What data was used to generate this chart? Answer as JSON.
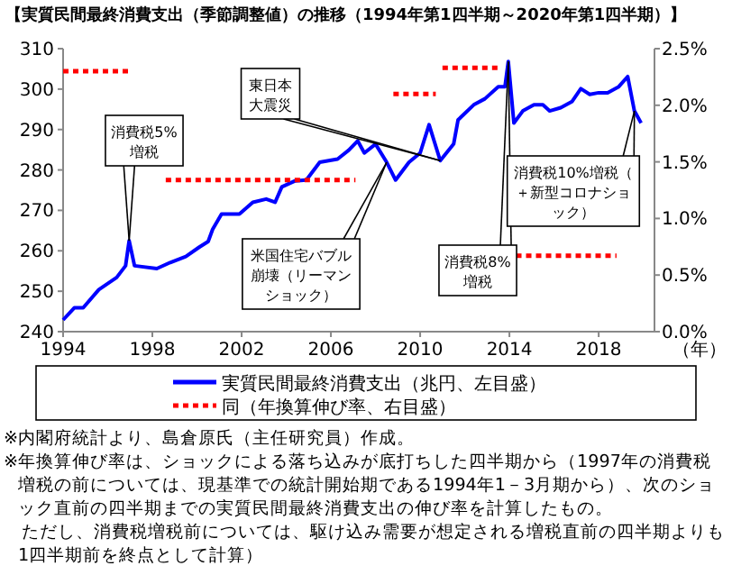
{
  "chart_data": {
    "type": "line",
    "title": "【実質民間最終消費支出（季節調整値）の推移（1994年第1四半期～2020年第1四半期）】",
    "xlabel": "（年）",
    "xlim": [
      1994,
      2020.5
    ],
    "xticks": [
      1994,
      1998,
      2002,
      2006,
      2010,
      2014,
      2018
    ],
    "ylim": [
      240,
      310
    ],
    "yticks": [
      240,
      250,
      260,
      270,
      280,
      290,
      300,
      310
    ],
    "y2lim": [
      0,
      2.5
    ],
    "y2ticks": [
      {
        "value": 0,
        "label": "0.0%"
      },
      {
        "value": 0.5,
        "label": "0.5%"
      },
      {
        "value": 1,
        "label": "1.0%"
      },
      {
        "value": 1.5,
        "label": "1.5%"
      },
      {
        "value": 2,
        "label": "2.0%"
      },
      {
        "value": 2.5,
        "label": "2.5%"
      }
    ],
    "x": [
      1994.0,
      1994.5,
      1994.9,
      1995.6,
      1996.4,
      1996.8,
      1996.96,
      1997.2,
      1998.2,
      1998.8,
      1999.5,
      2000.1,
      2000.5,
      2000.7,
      2001.1,
      2001.9,
      2002.5,
      2003.1,
      2003.5,
      2003.8,
      2004.4,
      2004.9,
      2005.5,
      2006.3,
      2006.8,
      2007.2,
      2007.5,
      2008.0,
      2008.5,
      2008.9,
      2009.5,
      2010.0,
      2010.4,
      2010.9,
      2011.5,
      2011.7,
      2012.4,
      2012.9,
      2013.5,
      2013.8,
      2013.95,
      2014.2,
      2014.6,
      2015.1,
      2015.5,
      2015.8,
      2016.3,
      2016.8,
      2017.2,
      2017.6,
      2018.0,
      2018.4,
      2018.9,
      2019.3,
      2019.6,
      2019.9
    ],
    "series": [
      {
        "name": "実質民間最終消費支出（兆円、左目盛）",
        "color": "#0000ff",
        "line_style": "solid",
        "values": [
          242.9,
          245.9,
          245.9,
          250.4,
          253.4,
          256.3,
          262.5,
          256.3,
          255.6,
          257.1,
          258.6,
          260.9,
          262.3,
          265.3,
          269.1,
          269.1,
          272.0,
          272.8,
          272.0,
          275.8,
          277.3,
          277.5,
          281.9,
          282.7,
          284.9,
          287.2,
          284.2,
          286.4,
          281.9,
          277.5,
          281.9,
          284.2,
          291.2,
          282.3,
          286.4,
          292.4,
          296.1,
          297.6,
          300.6,
          300.6,
          306.8,
          291.6,
          294.6,
          296.1,
          296.1,
          294.6,
          295.4,
          296.9,
          300.1,
          298.7,
          299.1,
          299.1,
          300.6,
          303.1,
          294.6,
          291.6
        ]
      },
      {
        "name": "同（年換算伸び率、右目盛）",
        "color": "#ff0000",
        "axis": "y2",
        "line_style": "dotted",
        "x": [
          1994.0,
          1997.0,
          1997.8,
          1998.6,
          2007.1,
          2008.0,
          2008.8,
          2010.7,
          2010.85,
          2011.0,
          2013.6,
          2014.0,
          2014.3,
          2018.8
        ],
        "values": [
          2.3,
          2.3,
          null,
          1.34,
          1.34,
          null,
          2.1,
          2.1,
          null,
          2.33,
          2.33,
          null,
          0.67,
          0.67
        ]
      }
    ],
    "legend": "bottom",
    "grid": false,
    "marker": "none",
    "annotations": [
      {
        "text": "消費税5%増税",
        "x": 1996.96,
        "y": 262.5
      },
      {
        "text": "東日本大震災",
        "x": 2010.9,
        "y": 282.3
      },
      {
        "text": "米国住宅バブル崩壊（リーマンショック）",
        "x": 2008.5,
        "y": 281.9
      },
      {
        "text": "消費税8%増税",
        "x": 2013.95,
        "y": 306.8
      },
      {
        "text": "消費税10%増税（＋新型コロナショック）",
        "x": 2019.6,
        "y": 294.6
      },
      "※内閣府統計より、島倉原氏（主任研究員）作成。",
      "※年換算伸び率は、ショックによる落ち込みが底打ちした四半期から（1997年の消費税増税の前については、現基準での統計開始期である1994年1－3月期から）、次のショック直前の四半期までの実質民間最終消費支出の伸び率を計算したもの。",
      "　ただし、消費税増税前については、駆け込み需要が想定される増税直前の四半期よりも1四半期前を終点として計算）"
    ]
  }
}
